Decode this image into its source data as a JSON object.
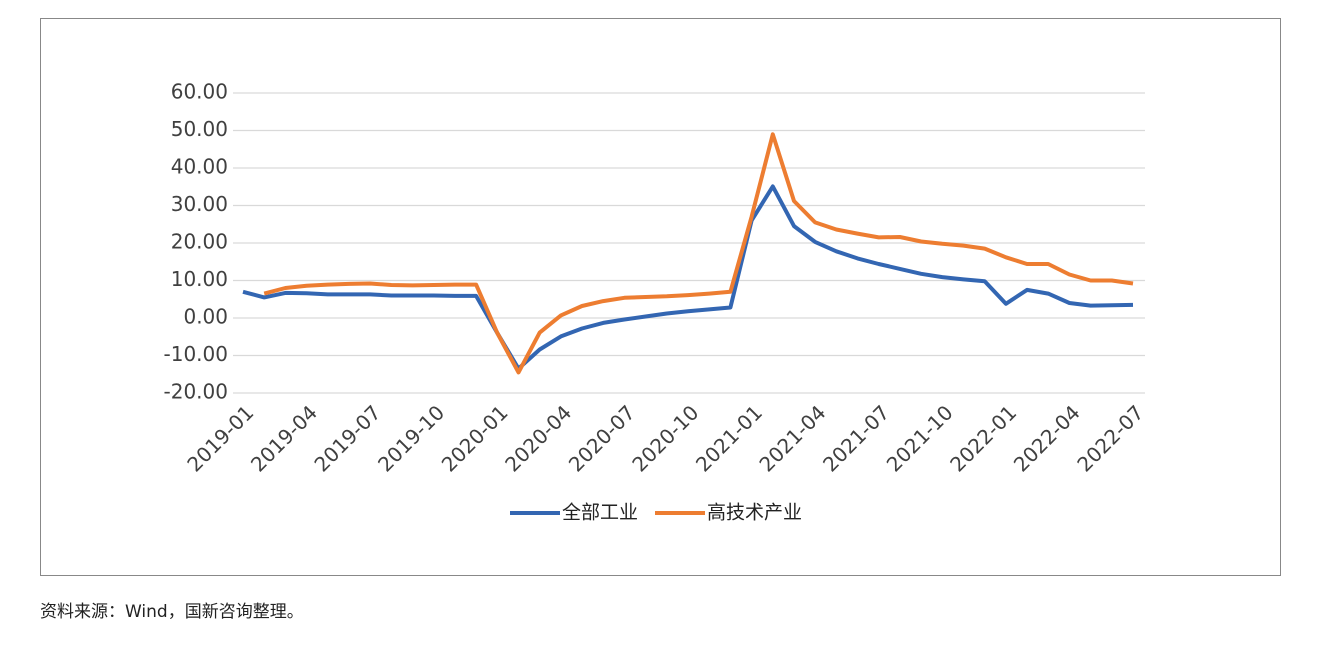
{
  "chart_data": {
    "type": "line",
    "x": [
      "2019-01",
      null,
      null,
      "2019-04",
      null,
      null,
      "2019-07",
      null,
      null,
      "2019-10",
      null,
      null,
      "2020-01",
      null,
      null,
      "2020-04",
      null,
      null,
      "2020-07",
      null,
      null,
      "2020-10",
      null,
      null,
      "2021-01",
      null,
      null,
      "2021-04",
      null,
      null,
      "2021-07",
      null,
      null,
      "2021-10",
      null,
      null,
      "2022-01",
      null,
      null,
      "2022-04",
      null,
      null,
      "2022-07"
    ],
    "series": [
      {
        "name": "全部工业",
        "color": "#3366b2",
        "values": [
          7.0,
          5.5,
          6.7,
          6.6,
          6.3,
          6.3,
          6.3,
          6.0,
          6.0,
          6.0,
          5.9,
          5.9,
          -4.0,
          -13.5,
          -8.4,
          -4.9,
          -2.8,
          -1.3,
          -0.4,
          0.4,
          1.2,
          1.8,
          2.3,
          2.8,
          26.0,
          35.1,
          24.5,
          20.3,
          17.8,
          15.9,
          14.4,
          13.1,
          11.8,
          10.9,
          10.3,
          9.8,
          3.8,
          7.5,
          6.5,
          4.0,
          3.3,
          3.4,
          3.5
        ]
      },
      {
        "name": "高技术产业",
        "color": "#ed7d31",
        "values": [
          null,
          6.5,
          8.0,
          8.6,
          8.9,
          9.1,
          9.2,
          8.8,
          8.7,
          8.8,
          8.9,
          8.9,
          -4.0,
          -14.5,
          -3.9,
          0.7,
          3.2,
          4.5,
          5.4,
          5.6,
          5.8,
          6.1,
          6.5,
          7.0,
          27.0,
          49.0,
          31.2,
          25.5,
          23.6,
          22.5,
          21.5,
          21.6,
          20.4,
          19.8,
          19.3,
          18.5,
          16.2,
          14.4,
          14.4,
          11.6,
          10.0,
          10.0,
          9.2
        ]
      }
    ],
    "ylim": [
      -20,
      60
    ],
    "yticks": [
      {
        "value": -20,
        "label": "-20.00"
      },
      {
        "value": -10,
        "label": "-10.00"
      },
      {
        "value": 0,
        "label": "0.00"
      },
      {
        "value": 10,
        "label": "10.00"
      },
      {
        "value": 20,
        "label": "20.00"
      },
      {
        "value": 30,
        "label": "30.00"
      },
      {
        "value": 40,
        "label": "40.00"
      },
      {
        "value": 50,
        "label": "50.00"
      },
      {
        "value": 60,
        "label": "60.00"
      }
    ],
    "grid": true,
    "legend": "bottom"
  },
  "footer": "资料来源：Wind，国新咨询整理。"
}
